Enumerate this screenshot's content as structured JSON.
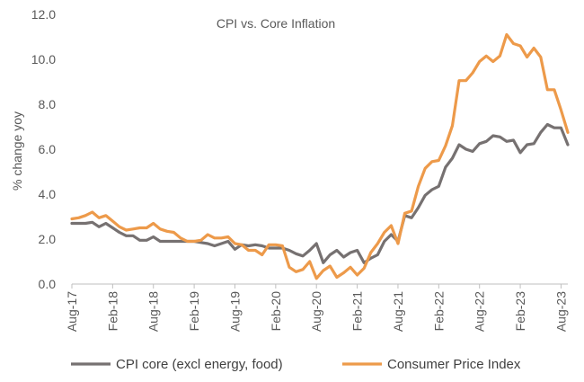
{
  "chart_data": {
    "type": "line",
    "title": "CPI vs. Core Inflation",
    "xlabel": "",
    "ylabel": "% change yoy",
    "ylim": [
      0,
      12
    ],
    "yticks": [
      "0.0",
      "2.0",
      "4.0",
      "6.0",
      "8.0",
      "10.0",
      "12.0"
    ],
    "x_tick_labels": [
      "Aug-17",
      "Feb-18",
      "Aug-18",
      "Feb-19",
      "Aug-19",
      "Feb-20",
      "Aug-20",
      "Feb-21",
      "Aug-21",
      "Feb-22",
      "Aug-22",
      "Feb-23",
      "Aug-23"
    ],
    "x_start": "Aug-17",
    "x_end": "Aug-23",
    "x_frequency": "monthly",
    "grid": false,
    "legend_position": "bottom",
    "series": [
      {
        "name": "CPI core (excl energy, food)",
        "color": "#767171",
        "values": [
          2.7,
          2.7,
          2.7,
          2.75,
          2.55,
          2.7,
          2.5,
          2.3,
          2.15,
          2.15,
          1.95,
          1.95,
          2.1,
          1.9,
          1.9,
          1.9,
          1.9,
          1.9,
          1.9,
          1.85,
          1.8,
          1.7,
          1.8,
          1.9,
          1.55,
          1.75,
          1.7,
          1.75,
          1.7,
          1.6,
          1.6,
          1.6,
          1.5,
          1.35,
          1.25,
          1.5,
          1.8,
          0.95,
          1.3,
          1.5,
          1.2,
          1.4,
          1.5,
          0.95,
          1.15,
          1.3,
          1.9,
          2.2,
          1.9,
          3.05,
          2.95,
          3.4,
          3.95,
          4.2,
          4.35,
          5.2,
          5.6,
          6.2,
          6.0,
          5.9,
          6.25,
          6.35,
          6.6,
          6.55,
          6.35,
          6.4,
          5.85,
          6.2,
          6.25,
          6.75,
          7.1,
          6.95,
          6.95,
          6.2
        ]
      },
      {
        "name": "Consumer Price Index",
        "color": "#ed9a4a",
        "values": [
          2.9,
          2.95,
          3.05,
          3.2,
          2.95,
          3.05,
          2.8,
          2.55,
          2.4,
          2.45,
          2.5,
          2.5,
          2.7,
          2.45,
          2.35,
          2.3,
          2.05,
          1.9,
          1.9,
          1.95,
          2.2,
          2.05,
          2.05,
          2.1,
          1.8,
          1.75,
          1.5,
          1.5,
          1.3,
          1.75,
          1.75,
          1.7,
          0.75,
          0.55,
          0.65,
          1.0,
          0.25,
          0.6,
          0.8,
          0.3,
          0.5,
          0.75,
          0.4,
          0.7,
          1.4,
          1.8,
          2.3,
          2.6,
          1.8,
          3.15,
          3.25,
          4.35,
          5.15,
          5.45,
          5.5,
          6.15,
          7.05,
          9.05,
          9.05,
          9.4,
          9.9,
          10.15,
          9.9,
          10.15,
          11.1,
          10.7,
          10.6,
          10.1,
          10.5,
          10.1,
          8.65,
          8.65,
          7.75,
          6.75
        ]
      }
    ]
  }
}
